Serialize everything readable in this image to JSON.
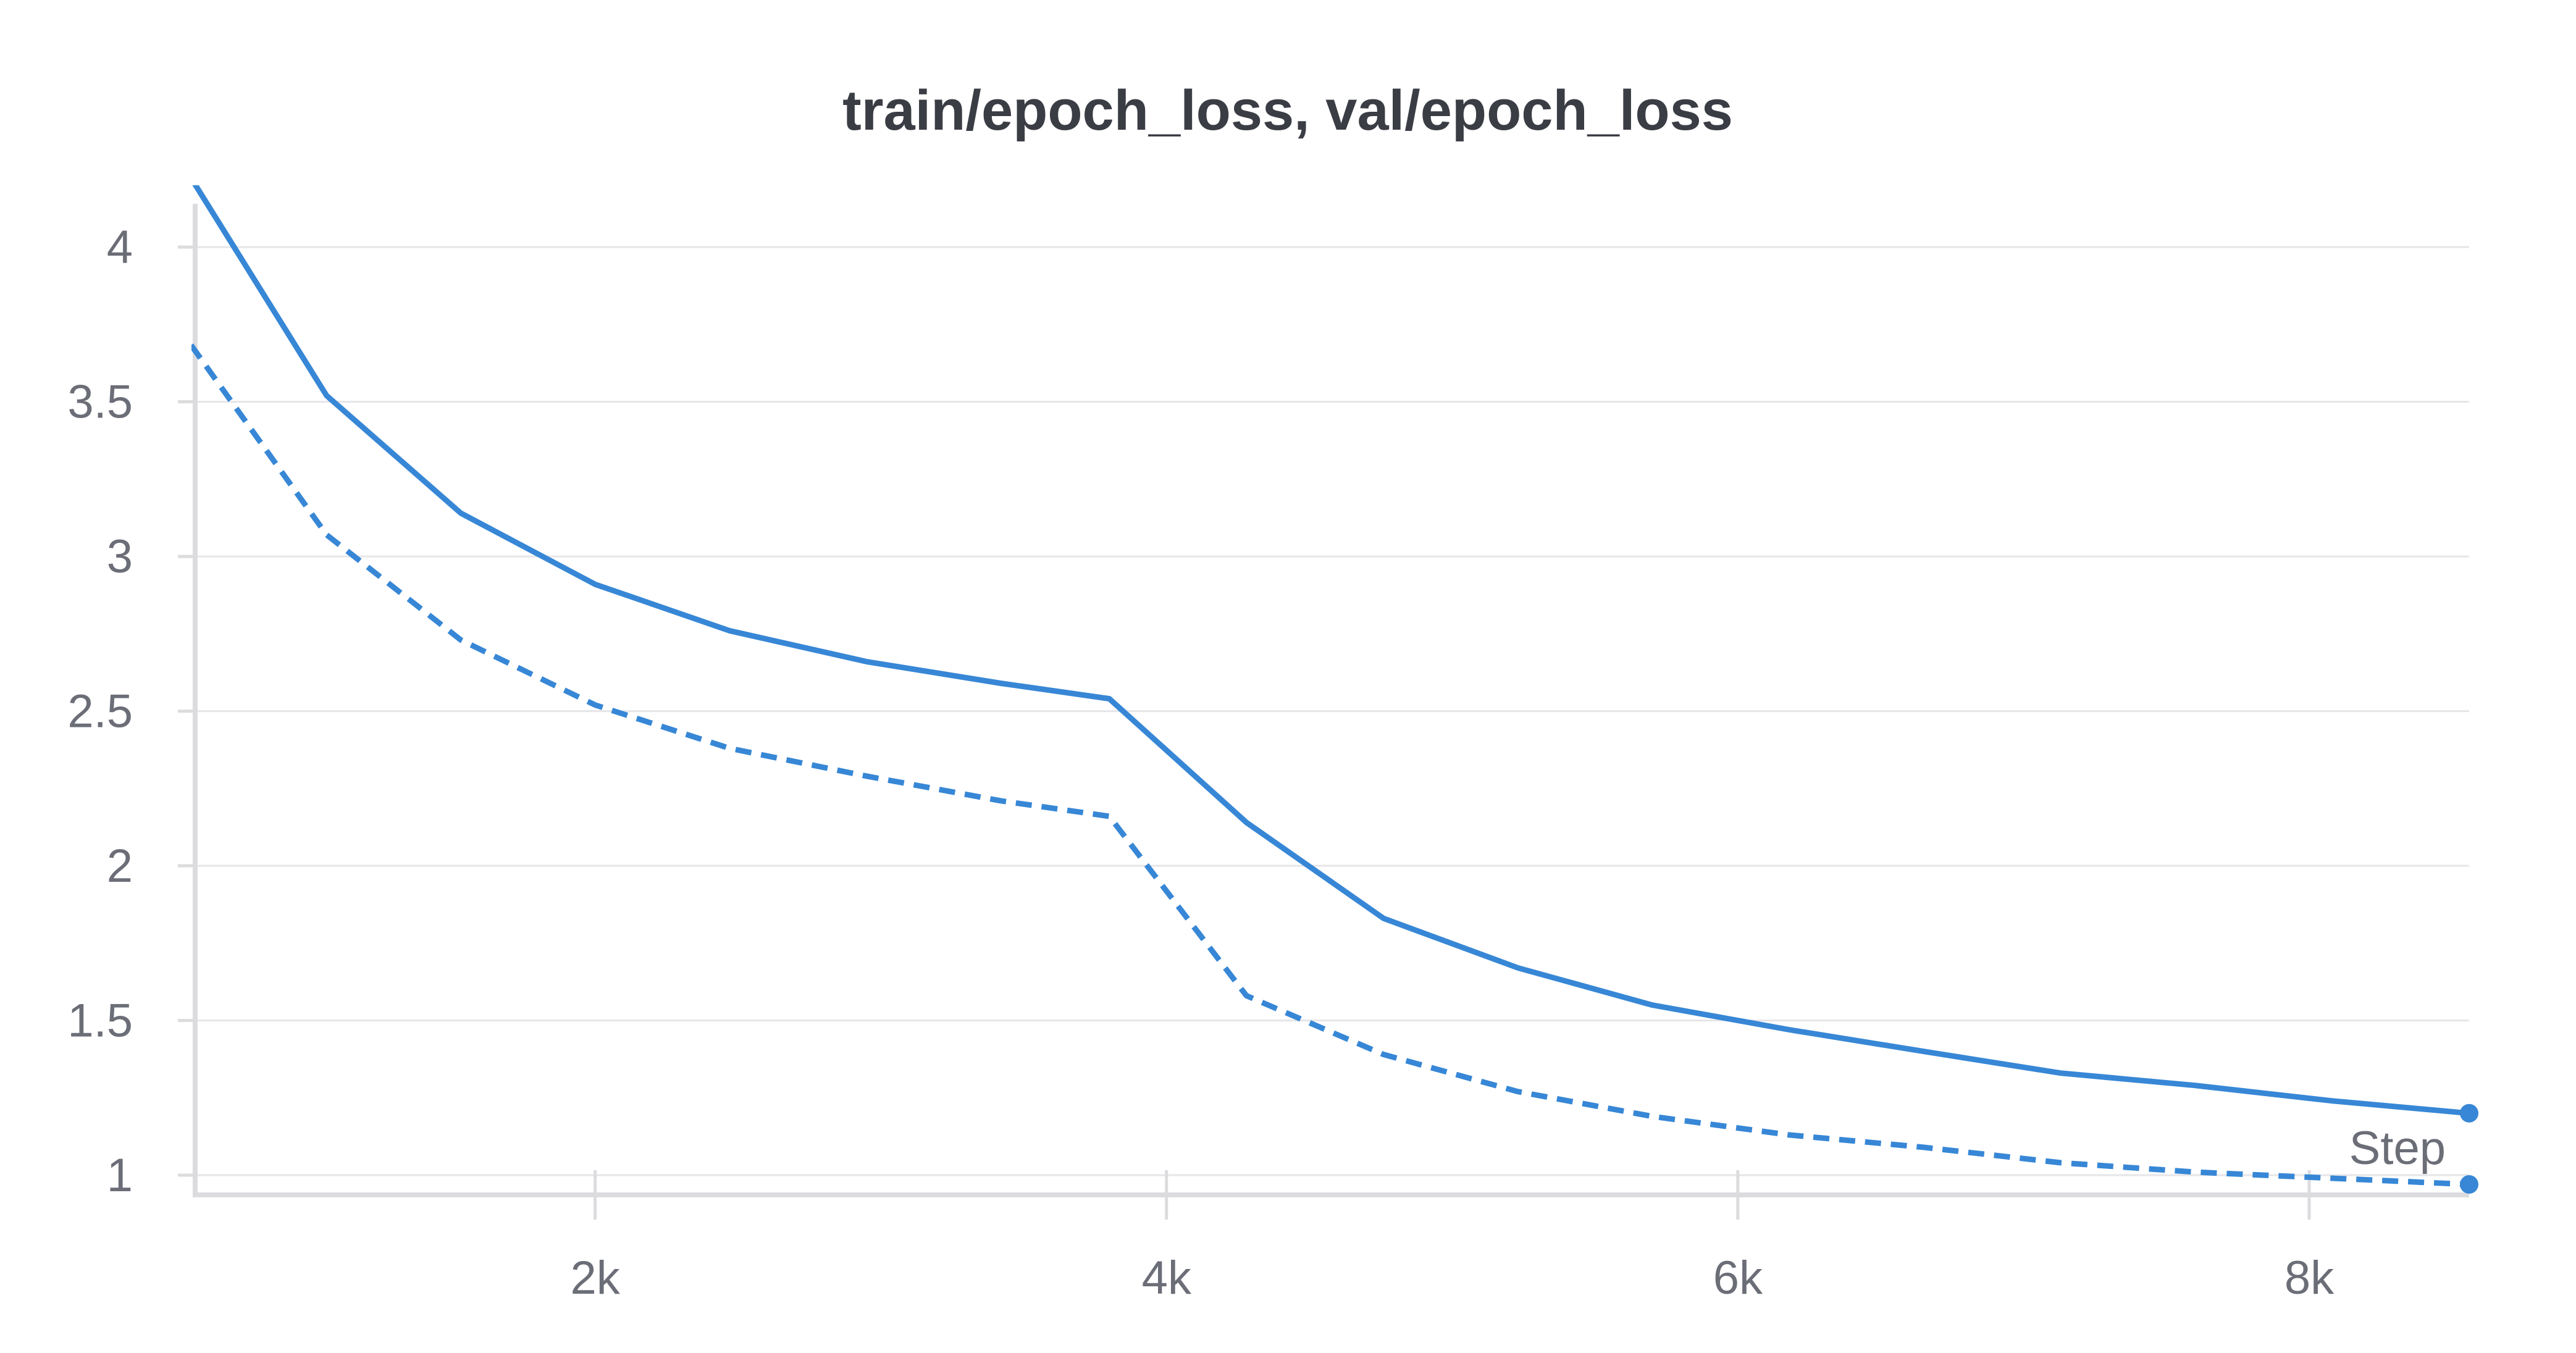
{
  "chart_data": {
    "type": "line",
    "title": "train/epoch_loss, val/epoch_loss",
    "xlabel": "Step",
    "ylabel": "",
    "xlim": [
      600,
      8560
    ],
    "ylim": [
      0.97,
      4.2
    ],
    "x_ticks": [
      {
        "value": 2000,
        "label": "2k"
      },
      {
        "value": 4000,
        "label": "4k"
      },
      {
        "value": 6000,
        "label": "6k"
      },
      {
        "value": 8000,
        "label": "8k"
      }
    ],
    "y_ticks": [
      {
        "value": 1,
        "label": "1"
      },
      {
        "value": 1.5,
        "label": "1.5"
      },
      {
        "value": 2,
        "label": "2"
      },
      {
        "value": 2.5,
        "label": "2.5"
      },
      {
        "value": 3,
        "label": "3"
      },
      {
        "value": 3.5,
        "label": "3.5"
      },
      {
        "value": 4,
        "label": "4"
      }
    ],
    "grid": true,
    "series": [
      {
        "style": "solid",
        "color": "#3787d6",
        "x": [
          480,
          1060,
          1530,
          2000,
          2470,
          2950,
          3420,
          3800,
          4280,
          4760,
          5230,
          5700,
          6180,
          6650,
          7130,
          7600,
          8080,
          8560
        ],
        "y": [
          4.38,
          3.52,
          3.14,
          2.91,
          2.76,
          2.66,
          2.59,
          2.54,
          2.14,
          1.83,
          1.67,
          1.55,
          1.47,
          1.4,
          1.33,
          1.29,
          1.24,
          1.2
        ]
      },
      {
        "style": "dashed",
        "color": "#3787d6",
        "x": [
          480,
          1060,
          1530,
          2000,
          2470,
          2950,
          3420,
          3800,
          4280,
          4760,
          5230,
          5700,
          6180,
          6650,
          7130,
          7600,
          8080,
          8560
        ],
        "y": [
          3.82,
          3.07,
          2.73,
          2.52,
          2.38,
          2.29,
          2.21,
          2.16,
          1.58,
          1.39,
          1.27,
          1.19,
          1.13,
          1.09,
          1.04,
          1.01,
          0.99,
          0.97
        ]
      }
    ]
  }
}
